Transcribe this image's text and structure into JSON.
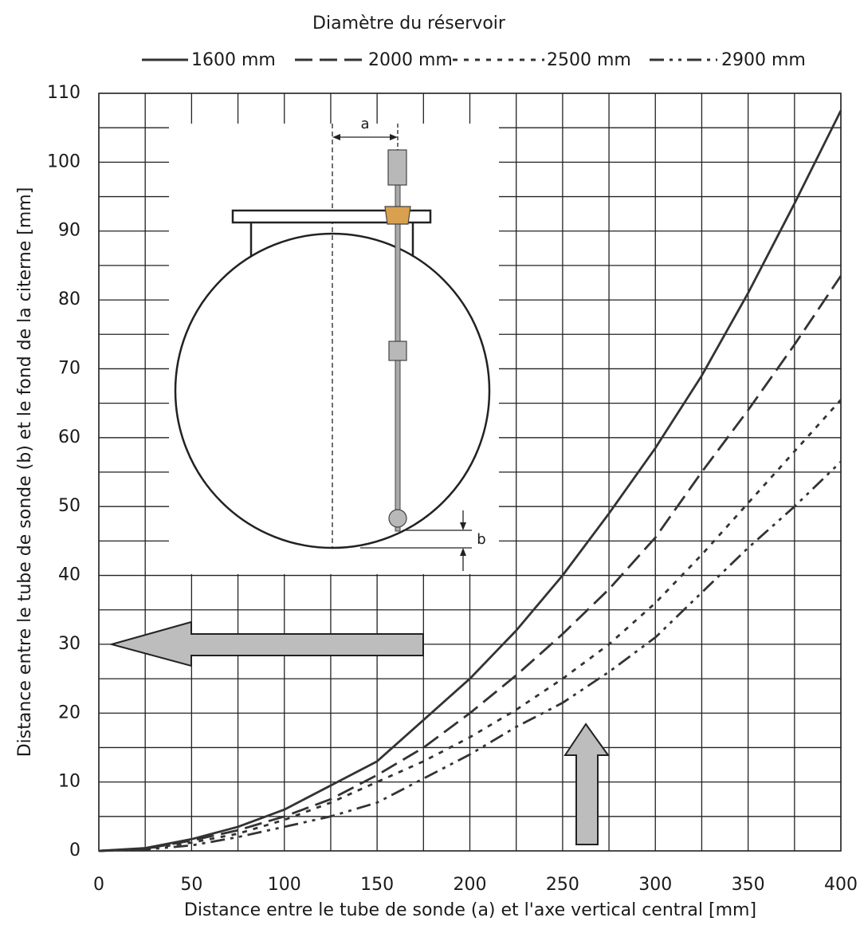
{
  "chart_data": {
    "type": "line",
    "legend_title": "Diamètre du réservoir",
    "x_label": "Distance entre le tube de sonde (a) et l'axe vertical central [mm]",
    "y_label": "Distance entre le tube de sonde (b) et le fond de la citerne [mm]",
    "annotations": [
      "a",
      "b"
    ],
    "x": [
      0,
      25,
      50,
      75,
      100,
      125,
      150,
      175,
      200,
      225,
      250,
      275,
      300,
      325,
      350,
      375,
      400
    ],
    "series": [
      {
        "name": "1600 mm",
        "color": "#333333",
        "values": [
          0,
          0.4,
          1.7,
          3.5,
          6,
          9.5,
          13,
          19,
          25,
          32,
          40,
          49,
          58.5,
          69,
          81,
          94,
          107.5
        ]
      },
      {
        "name": "2000 mm",
        "color": "#333333",
        "values": [
          0,
          0.3,
          1.5,
          3,
          5,
          7.5,
          11,
          15,
          20,
          25.5,
          31.5,
          38,
          45.5,
          55,
          64,
          73.5,
          83.5
        ]
      },
      {
        "name": "2500 mm",
        "color": "#333333",
        "values": [
          0,
          0.3,
          1.2,
          2.5,
          4.5,
          7,
          10,
          13,
          16.5,
          20.5,
          25,
          30,
          36,
          43,
          50.5,
          58,
          65.5
        ]
      },
      {
        "name": "2900 mm",
        "color": "#333333",
        "values": [
          0,
          0.2,
          0.8,
          2,
          3.5,
          5,
          7,
          10.5,
          14,
          18,
          21.5,
          26,
          31,
          37.5,
          44,
          50,
          56.5
        ]
      }
    ],
    "xlim": [
      0,
      400
    ],
    "ylim": [
      0,
      110
    ],
    "xticks": [
      0,
      50,
      100,
      150,
      200,
      250,
      300,
      350,
      400
    ],
    "yticks": [
      0,
      10,
      20,
      30,
      40,
      50,
      60,
      70,
      80,
      90,
      100,
      110
    ],
    "grid": true
  }
}
